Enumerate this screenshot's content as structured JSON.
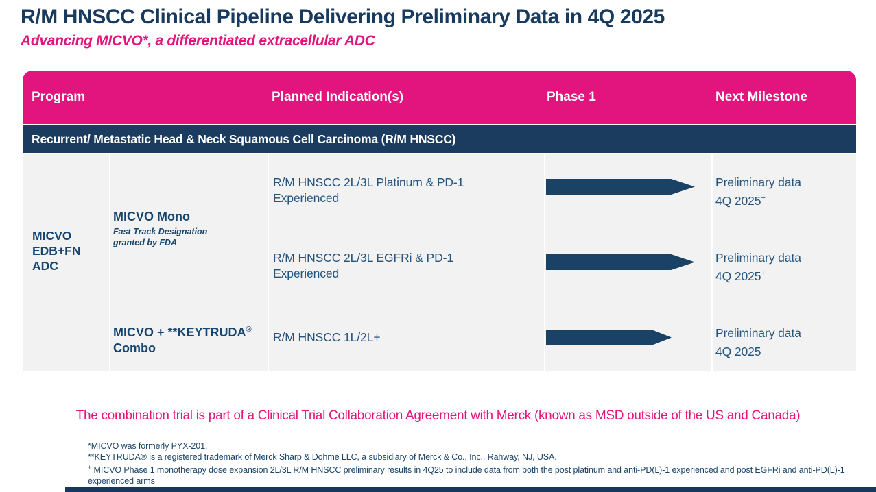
{
  "slide": {
    "title": "R/M HNSCC Clinical Pipeline Delivering Preliminary Data in 4Q 2025",
    "subtitle": "Advancing MICVO*, a differentiated extracellular ADC"
  },
  "colors": {
    "brand_pink": "#E2147D",
    "navy_dark": "#1B3C5F",
    "arrow_navy": "#1A4266",
    "body_text_blue": "#25547E",
    "table_bg": "#F2F2F2"
  },
  "table": {
    "headers": [
      "Program",
      "Planned Indication(s)",
      "Phase 1",
      "Next Milestone"
    ],
    "section_row": "Recurrent/ Metastatic Head & Neck Squamous Cell Carcinoma (R/M HNSCC)",
    "program_lines": [
      "MICVO",
      "EDB+FN",
      "ADC"
    ],
    "mono": {
      "name": "MICVO Mono",
      "note_line1": "Fast Track Designation",
      "note_line2": "granted by FDA"
    },
    "combo": {
      "name": "MICVO + **KEYTRUDA",
      "sup": "®",
      "line2": "Combo"
    },
    "rows": [
      {
        "indication_line1": "R/M HNSCC 2L/3L Platinum & PD-1",
        "indication_line2": "Experienced",
        "phase1_arrow": "long",
        "milestone_line1": "Preliminary data",
        "milestone_line2": "4Q 2025",
        "milestone_sup": "+"
      },
      {
        "indication_line1": "R/M HNSCC 2L/3L EGFRi & PD-1",
        "indication_line2": "Experienced",
        "phase1_arrow": "long",
        "milestone_line1": "Preliminary data",
        "milestone_line2": "4Q 2025",
        "milestone_sup": "+"
      },
      {
        "indication_line1": "R/M HNSCC 1L/2L+",
        "indication_line2": "",
        "phase1_arrow": "short",
        "milestone_line1": "Preliminary data",
        "milestone_line2": "4Q 2025",
        "milestone_sup": ""
      }
    ]
  },
  "notes": {
    "collaboration": "The combination trial is part of a Clinical Trial Collaboration Agreement with Merck (known as MSD outside of the US and Canada)"
  },
  "footnotes": {
    "line1": "*MICVO was formerly PYX-201.",
    "line2": "**KEYTRUDA® is a registered trademark of Merck Sharp & Dohme LLC, a subsidiary of Merck & Co., Inc., Rahway, NJ, USA.",
    "line3_sup": "+",
    "line3": " MICVO Phase 1 monotherapy dose expansion 2L/3L R/M HNSCC preliminary results in 4Q25 to include data from both the post platinum and anti-PD(L)-1 experienced and post EGFRi and anti-PD(L)-1",
    "line4": "experienced arms"
  }
}
